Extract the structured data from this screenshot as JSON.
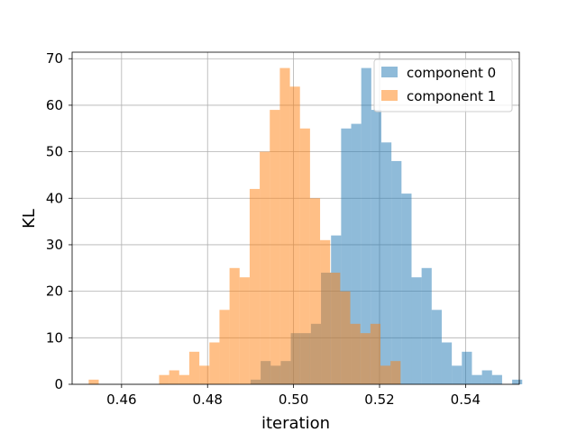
{
  "chart_data": {
    "type": "histogram",
    "title": "",
    "xlabel": "iteration",
    "ylabel": "KL",
    "xlim": [
      0.4485,
      0.5525
    ],
    "ylim": [
      0,
      71.4
    ],
    "xticks": [
      0.46,
      0.48,
      0.5,
      0.52,
      0.54
    ],
    "xtick_labels": [
      "0.46",
      "0.48",
      "0.50",
      "0.52",
      "0.54"
    ],
    "yticks": [
      0,
      10,
      20,
      30,
      40,
      50,
      60,
      70
    ],
    "ytick_labels": [
      "0",
      "10",
      "20",
      "30",
      "40",
      "50",
      "60",
      "70"
    ],
    "grid": true,
    "legend_position": "top-right",
    "series": [
      {
        "name": "component 0",
        "color": "#1f77b4",
        "alpha": 0.5,
        "bin_start": 0.49,
        "bin_width": 0.00234,
        "counts": [
          1,
          5,
          4,
          5,
          11,
          11,
          13,
          24,
          32,
          55,
          56,
          68,
          59,
          52,
          48,
          41,
          23,
          25,
          16,
          9,
          4,
          7,
          2,
          3,
          2,
          0,
          1
        ]
      },
      {
        "name": "component 1",
        "color": "#ff7f0e",
        "alpha": 0.5,
        "bin_start": 0.45235,
        "bin_width": 0.00234,
        "counts": [
          1,
          0,
          0,
          0,
          0,
          0,
          0,
          2,
          3,
          2,
          7,
          4,
          9,
          16,
          25,
          23,
          42,
          50,
          59,
          68,
          64,
          55,
          40,
          31,
          24,
          20,
          13,
          11,
          13,
          4,
          5
        ]
      }
    ]
  }
}
